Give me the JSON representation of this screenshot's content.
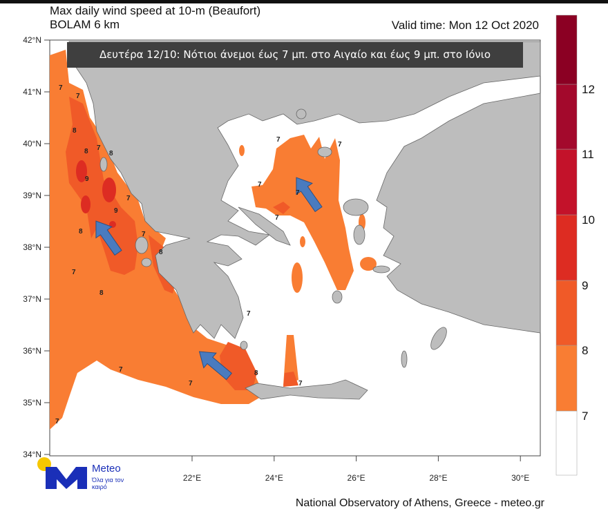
{
  "header": {
    "title_line1": "Max daily wind speed at 10-m (Beaufort)",
    "title_line2": "BOLAM 6 km",
    "valid_time": "Valid time: Mon 12 Oct 2020"
  },
  "banner": "Δευτέρα 12/10: Νότιοι άνεμοι έως 7 μπ. στο Αιγαίο και έως 9 μπ. στο Ιόνιο",
  "axes": {
    "lat_ticks": [
      "42°N",
      "41°N",
      "40°N",
      "39°N",
      "38°N",
      "37°N",
      "36°N",
      "35°N",
      "34°N"
    ],
    "lon_ticks": [
      "22°E",
      "24°E",
      "26°E",
      "28°E",
      "30°E"
    ]
  },
  "legend": {
    "labels": [
      "7",
      "8",
      "9",
      "10",
      "11",
      "12"
    ],
    "colors": [
      "#ffffff",
      "#f97d33",
      "#f05a28",
      "#dd2c22",
      "#c3122a",
      "#a3092c",
      "#8b0023"
    ]
  },
  "contour_labels": [
    "7",
    "7",
    "8",
    "8",
    "7",
    "8",
    "9",
    "9",
    "8",
    "7",
    "7",
    "8",
    "8",
    "7",
    "7",
    "7",
    "7",
    "8",
    "7",
    "7",
    "7",
    "7",
    "7",
    "7",
    "7"
  ],
  "colors": {
    "land": "#bdbdbd",
    "arrow": "#4a7bbf"
  },
  "logo": {
    "name": "Meteo",
    "tagline": "Όλα για τον καιρό"
  },
  "footer": "National Observatory of Athens, Greece - meteo.gr"
}
